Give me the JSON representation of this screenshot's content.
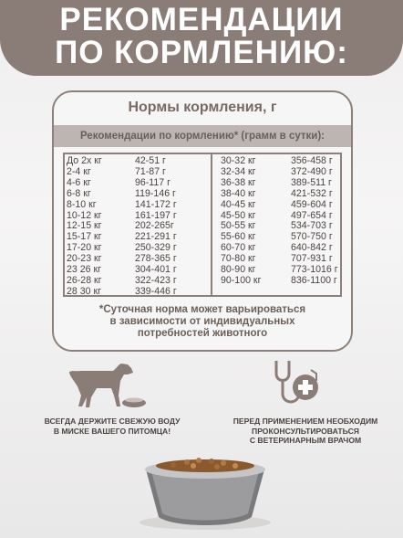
{
  "header": {
    "line1": "РЕКОМЕНДАЦИИ",
    "line2": "ПО КОРМЛЕНИЮ:"
  },
  "card": {
    "title": "Нормы кормления, г",
    "subtitle": "Рекомендации по кормлению* (грамм в сутки):",
    "left_weights": [
      "До 2х кг",
      "2-4 кг",
      "4-6 кг",
      "6-8 кг",
      "8-10 кг",
      "10-12 кг",
      "12-15 кг",
      "15-17 кг",
      "17-20 кг",
      "20-23 кг",
      "23 26 кг",
      "26-28 кг",
      "28 30 кг"
    ],
    "left_amounts": [
      "42-51 г",
      "71-87 г",
      "96-117 г",
      "119-146 г",
      "141-172 г",
      "161-197 г",
      "202-265г",
      "221-291 г",
      "250-329 г",
      "278-365 г",
      "304-401 г",
      "322-423 г",
      "339-446 г"
    ],
    "right_weights": [
      "30-32 кг",
      "32-34 кг",
      "36-38 кг",
      "38-40 кг",
      "40-45 кг",
      "45-50 кг",
      "50-55 кг",
      "55-60 кг",
      "60-70 кг",
      "70-80 кг",
      "80-90 кг",
      "90-100 кг"
    ],
    "right_amounts": [
      "356-458 г",
      "372-490 г",
      "389-511 г",
      "421-532 г",
      "459-604 г",
      "497-654 г",
      "534-703 г",
      "570-750 г",
      "640-842 г",
      "707-931 г",
      "773-1016 г",
      "836-1100 г"
    ],
    "note_line1": "*Суточная норма может варьироваться",
    "note_line2": "в зависимости от индивидуальных",
    "note_line3": "потребностей животного"
  },
  "bottom": {
    "left_line1": "ВСЕГДА ДЕРЖИТЕ СВЕЖУЮ ВОДУ",
    "left_line2": "В МИСКЕ ВАШЕГО ПИТОМЦА!",
    "right_line1": "ПЕРЕД ПРИМЕНЕНИЕМ НЕОБХОДИМ",
    "right_line2": "ПРОКОНСУЛЬТИРОВАТЬСЯ",
    "right_line3": "С ВЕТЕРИНАРНЫМ ВРАЧОМ"
  },
  "icons": {
    "dog": "dog-with-bowl-icon",
    "vet": "stethoscope-cross-icon",
    "bowl": "food-bowl-image"
  },
  "colors": {
    "header": "#8a7c76",
    "border": "#8d807a",
    "subtitle_bg": "#bdb5b1"
  }
}
